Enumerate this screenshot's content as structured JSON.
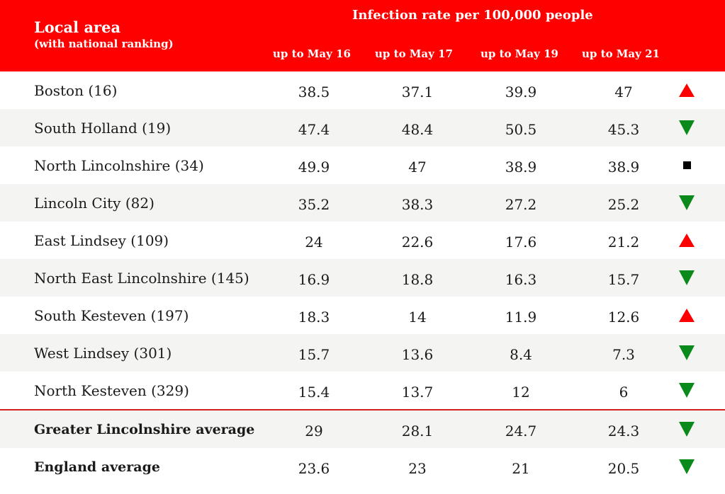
{
  "header": {
    "local_area": "Local area",
    "local_area_sub": "(with national ranking)",
    "rate_title": "Infection rate per 100,000 people",
    "columns": [
      "up to May 16",
      "up to May 17",
      "up to May 19",
      "up to May 21"
    ]
  },
  "colors": {
    "header_bg": "#ff0000",
    "up": "#ff0000",
    "down": "#0a8a1a",
    "same": "#000000"
  },
  "chart_data": {
    "type": "table",
    "columns": [
      "Local area",
      "up to May 16",
      "up to May 17",
      "up to May 19",
      "up to May 21",
      "trend"
    ],
    "rows": [
      {
        "name": "Boston (16)",
        "values": [
          "38.5",
          "37.1",
          "39.9",
          "47"
        ],
        "trend": "up"
      },
      {
        "name": "South Holland (19)",
        "values": [
          "47.4",
          "48.4",
          "50.5",
          "45.3"
        ],
        "trend": "down"
      },
      {
        "name": "North Lincolnshire (34)",
        "values": [
          "49.9",
          "47",
          "38.9",
          "38.9"
        ],
        "trend": "same"
      },
      {
        "name": "Lincoln City (82)",
        "values": [
          "35.2",
          "38.3",
          "27.2",
          "25.2"
        ],
        "trend": "down"
      },
      {
        "name": "East Lindsey (109)",
        "values": [
          "24",
          "22.6",
          "17.6",
          "21.2"
        ],
        "trend": "up"
      },
      {
        "name": "North East Lincolnshire (145)",
        "values": [
          "16.9",
          "18.8",
          "16.3",
          "15.7"
        ],
        "trend": "down"
      },
      {
        "name": "South Kesteven (197)",
        "values": [
          "18.3",
          "14",
          "11.9",
          "12.6"
        ],
        "trend": "up"
      },
      {
        "name": "West Lindsey (301)",
        "values": [
          "15.7",
          "13.6",
          "8.4",
          "7.3"
        ],
        "trend": "down"
      },
      {
        "name": "North Kesteven (329)",
        "values": [
          "15.4",
          "13.7",
          "12",
          "6"
        ],
        "trend": "down"
      }
    ],
    "summary_rows": [
      {
        "name": "Greater Lincolnshire average",
        "values": [
          "29",
          "28.1",
          "24.7",
          "24.3"
        ],
        "trend": "down"
      },
      {
        "name": "England average",
        "values": [
          "23.6",
          "23",
          "21",
          "20.5"
        ],
        "trend": "down"
      }
    ]
  }
}
